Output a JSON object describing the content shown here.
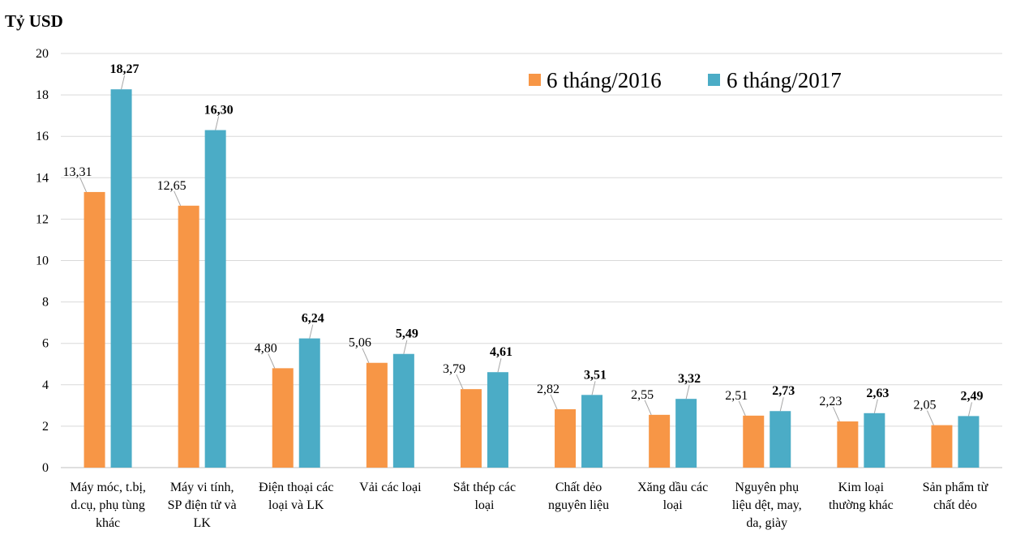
{
  "chart_data": {
    "type": "bar",
    "ylabel": "Tỷ USD",
    "ylim": [
      0,
      20
    ],
    "yticks": [
      0,
      2,
      4,
      6,
      8,
      10,
      12,
      14,
      16,
      18,
      20
    ],
    "grid": true,
    "legend_position": "top-right",
    "categories": [
      [
        "Máy móc, t.bị,",
        "d.cụ, phụ tùng",
        "khác"
      ],
      [
        "Máy vi tính,",
        "SP điện tử và",
        "LK"
      ],
      [
        "Điện thoại các",
        "loại và LK"
      ],
      [
        "Vải các loại"
      ],
      [
        "Sắt thép các",
        "loại"
      ],
      [
        "Chất dẻo",
        "nguyên liệu"
      ],
      [
        "Xăng dầu các",
        "loại"
      ],
      [
        "Nguyên phụ",
        "liệu dệt, may,",
        "da, giày"
      ],
      [
        "Kim loại",
        "thường khác"
      ],
      [
        "Sản phẩm từ",
        "chất dẻo"
      ]
    ],
    "series": [
      {
        "name": "6 tháng/2016",
        "color": "#F79646",
        "values": [
          13.31,
          12.65,
          4.8,
          5.06,
          3.79,
          2.82,
          2.55,
          2.51,
          2.23,
          2.05
        ],
        "labels": [
          "13,31",
          "12,65",
          "4,80",
          "5,06",
          "3,79",
          "2,82",
          "2,55",
          "2,51",
          "2,23",
          "2,05"
        ]
      },
      {
        "name": "6 tháng/2017",
        "color": "#4BACC6",
        "values": [
          18.27,
          16.3,
          6.24,
          5.49,
          4.61,
          3.51,
          3.32,
          2.73,
          2.63,
          2.49
        ],
        "labels": [
          "18,27",
          "16,30",
          "6,24",
          "5,49",
          "4,61",
          "3,51",
          "3,32",
          "2,73",
          "2,63",
          "2,49"
        ]
      }
    ]
  }
}
